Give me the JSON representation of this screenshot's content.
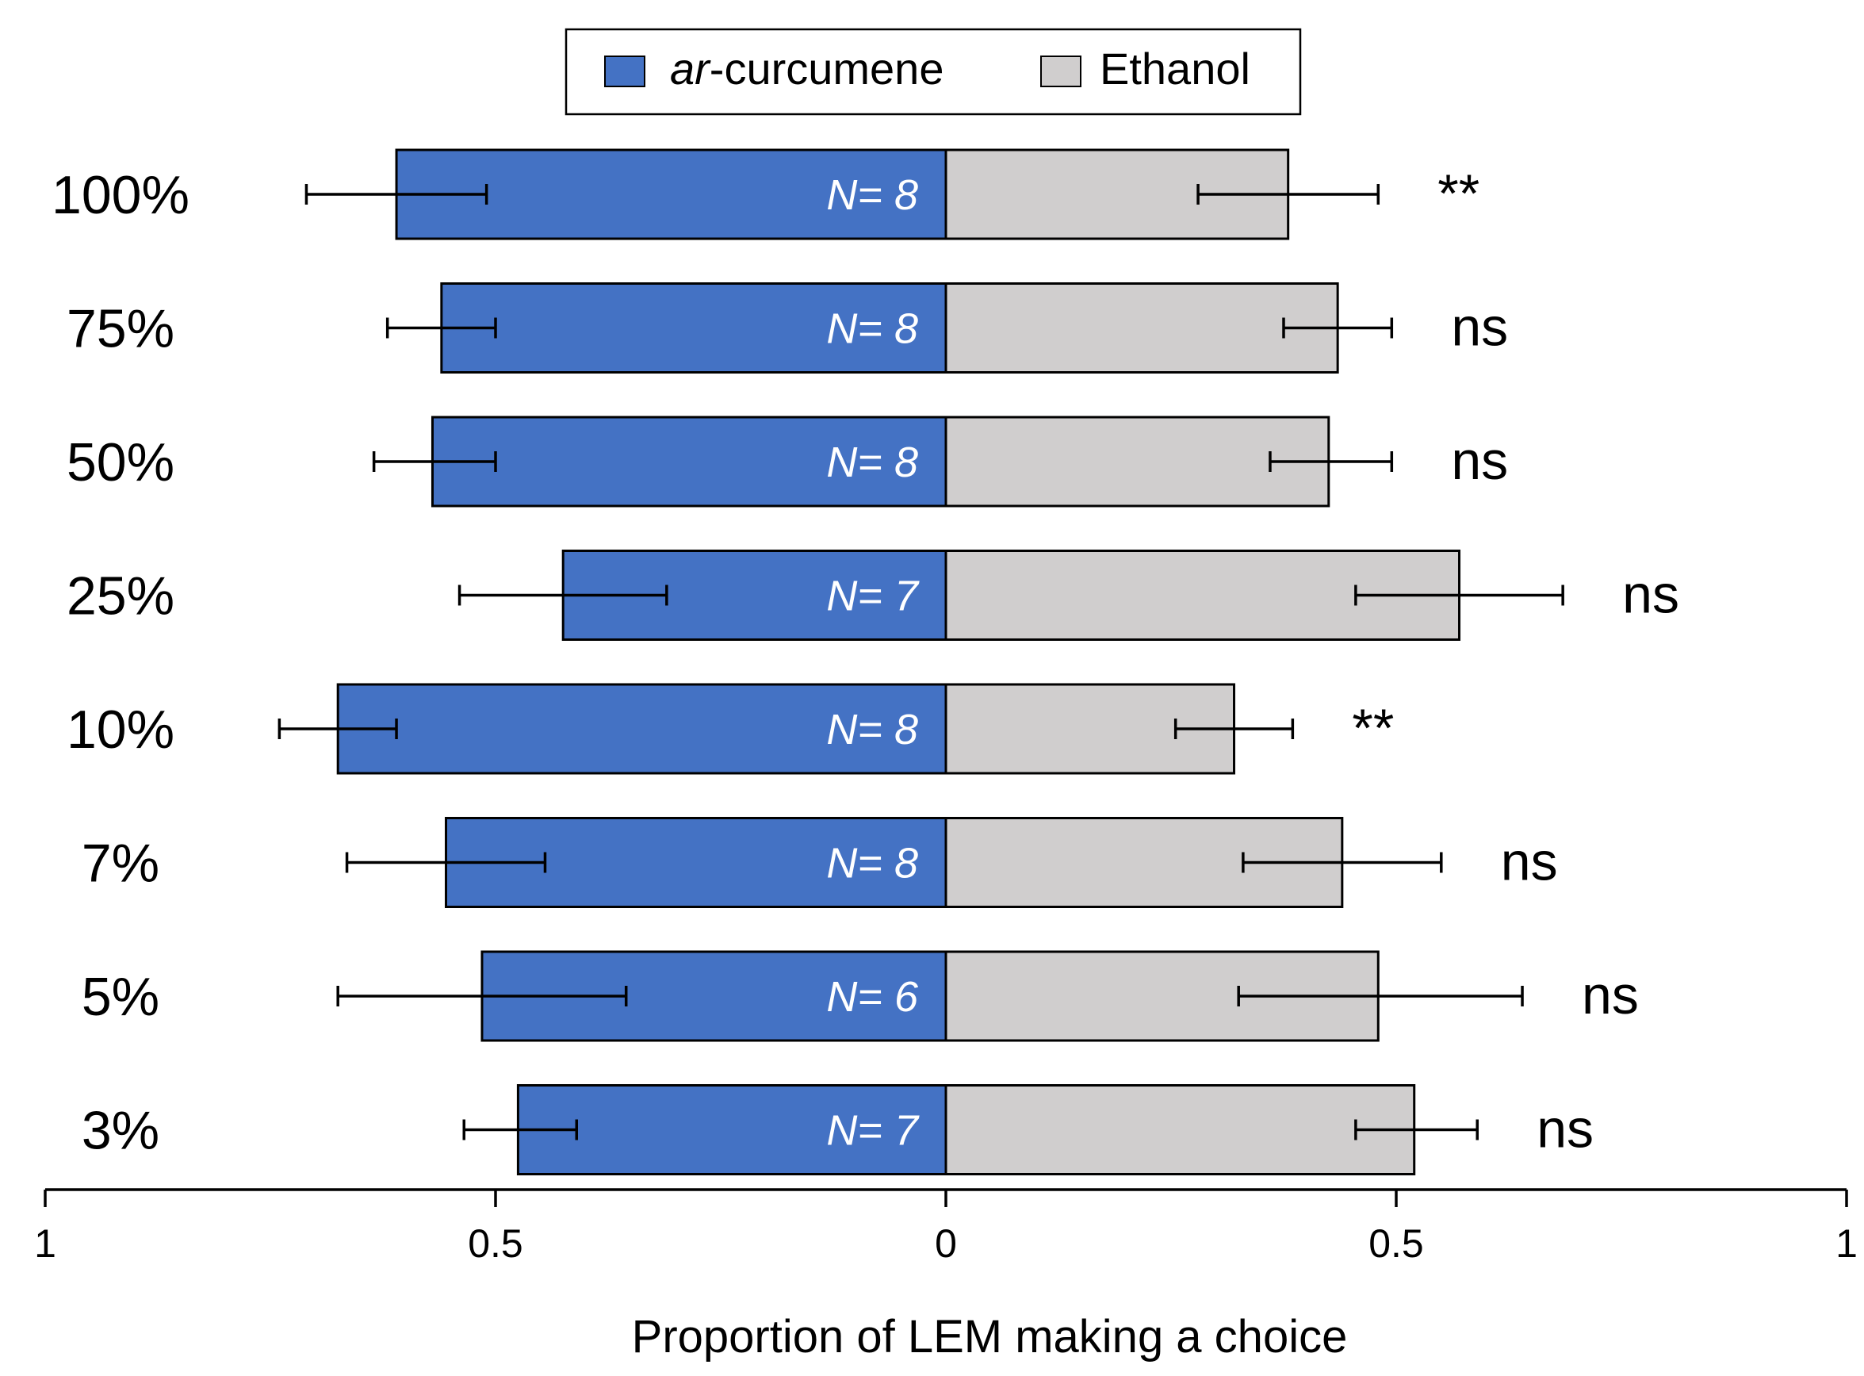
{
  "chart_data": {
    "type": "bar",
    "orientation": "horizontal-diverging",
    "xlabel": "Proportion of LEM making a choice",
    "xlim": [
      -1,
      1
    ],
    "x_ticks": [
      {
        "value": -1,
        "label": "1"
      },
      {
        "value": -0.5,
        "label": "0.5"
      },
      {
        "value": 0,
        "label": "0"
      },
      {
        "value": 0.5,
        "label": "0.5"
      },
      {
        "value": 1,
        "label": "1"
      }
    ],
    "legend": {
      "placement": "top-center",
      "items": [
        {
          "prefix": "ar",
          "label": "-curcumene",
          "color": "#4472C4"
        },
        {
          "prefix": "",
          "label": "Ethanol",
          "color": "#D0CECE"
        }
      ]
    },
    "categories": [
      "100%",
      "75%",
      "50%",
      "25%",
      "10%",
      "7%",
      "5%",
      "3%"
    ],
    "series": [
      {
        "name": "ar-curcumene",
        "color": "#4472C4",
        "values": [
          0.61,
          0.56,
          0.57,
          0.425,
          0.675,
          0.555,
          0.515,
          0.475
        ],
        "error_low": [
          0.71,
          0.62,
          0.635,
          0.54,
          0.74,
          0.665,
          0.675,
          0.535
        ],
        "error_high": [
          0.51,
          0.5,
          0.5,
          0.31,
          0.61,
          0.445,
          0.355,
          0.41
        ]
      },
      {
        "name": "Ethanol",
        "color": "#D0CECE",
        "values": [
          0.38,
          0.435,
          0.425,
          0.57,
          0.32,
          0.44,
          0.48,
          0.52
        ],
        "error_low": [
          0.28,
          0.375,
          0.36,
          0.455,
          0.255,
          0.33,
          0.325,
          0.455
        ],
        "error_high": [
          0.48,
          0.495,
          0.495,
          0.685,
          0.385,
          0.55,
          0.64,
          0.59
        ]
      }
    ],
    "n_labels": [
      "N= 8",
      "N= 8",
      "N= 8",
      "N= 7",
      "N= 8",
      "N= 8",
      "N= 6",
      "N= 7"
    ],
    "significance": [
      "**",
      "ns",
      "ns",
      "ns",
      "**",
      "ns",
      "ns",
      "ns"
    ]
  }
}
